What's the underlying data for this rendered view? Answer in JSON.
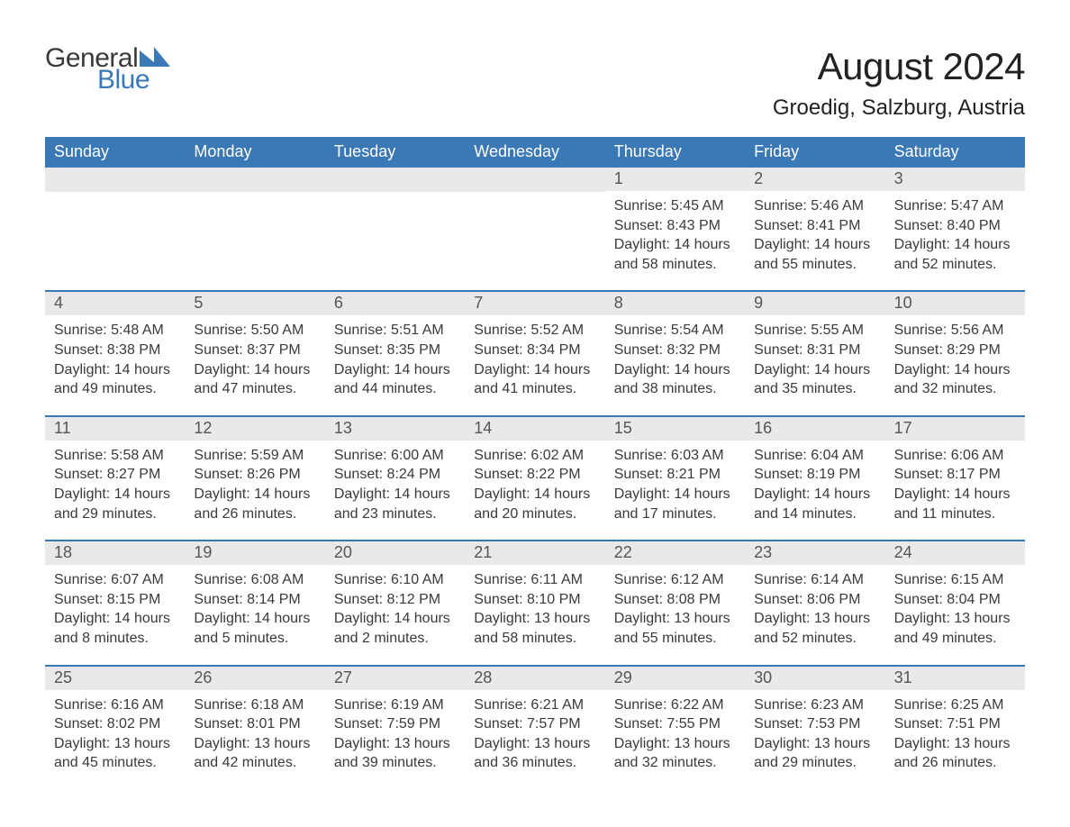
{
  "brand": {
    "name_part1": "General",
    "name_part2": "Blue",
    "color_text": "#3a3a3a",
    "color_accent": "#3a78b6"
  },
  "header": {
    "month_title": "August 2024",
    "location": "Groedig, Salzburg, Austria"
  },
  "style": {
    "page_bg": "#ffffff",
    "header_row_bg": "#3a78b6",
    "header_row_text": "#ffffff",
    "day_strip_bg": "#e9e9e9",
    "day_strip_text": "#555555",
    "body_text": "#3a3a3a",
    "week_divider": "#3a78b6",
    "month_title_fontsize": 42,
    "location_fontsize": 24,
    "weekday_fontsize": 18,
    "daynum_fontsize": 18,
    "body_fontsize": 16,
    "columns": 7
  },
  "weekdays": [
    "Sunday",
    "Monday",
    "Tuesday",
    "Wednesday",
    "Thursday",
    "Friday",
    "Saturday"
  ],
  "labels": {
    "sunrise": "Sunrise:",
    "sunset": "Sunset:",
    "daylight": "Daylight:"
  },
  "weeks": [
    [
      null,
      null,
      null,
      null,
      {
        "day": "1",
        "sunrise": "5:45 AM",
        "sunset": "8:43 PM",
        "daylight": "14 hours and 58 minutes."
      },
      {
        "day": "2",
        "sunrise": "5:46 AM",
        "sunset": "8:41 PM",
        "daylight": "14 hours and 55 minutes."
      },
      {
        "day": "3",
        "sunrise": "5:47 AM",
        "sunset": "8:40 PM",
        "daylight": "14 hours and 52 minutes."
      }
    ],
    [
      {
        "day": "4",
        "sunrise": "5:48 AM",
        "sunset": "8:38 PM",
        "daylight": "14 hours and 49 minutes."
      },
      {
        "day": "5",
        "sunrise": "5:50 AM",
        "sunset": "8:37 PM",
        "daylight": "14 hours and 47 minutes."
      },
      {
        "day": "6",
        "sunrise": "5:51 AM",
        "sunset": "8:35 PM",
        "daylight": "14 hours and 44 minutes."
      },
      {
        "day": "7",
        "sunrise": "5:52 AM",
        "sunset": "8:34 PM",
        "daylight": "14 hours and 41 minutes."
      },
      {
        "day": "8",
        "sunrise": "5:54 AM",
        "sunset": "8:32 PM",
        "daylight": "14 hours and 38 minutes."
      },
      {
        "day": "9",
        "sunrise": "5:55 AM",
        "sunset": "8:31 PM",
        "daylight": "14 hours and 35 minutes."
      },
      {
        "day": "10",
        "sunrise": "5:56 AM",
        "sunset": "8:29 PM",
        "daylight": "14 hours and 32 minutes."
      }
    ],
    [
      {
        "day": "11",
        "sunrise": "5:58 AM",
        "sunset": "8:27 PM",
        "daylight": "14 hours and 29 minutes."
      },
      {
        "day": "12",
        "sunrise": "5:59 AM",
        "sunset": "8:26 PM",
        "daylight": "14 hours and 26 minutes."
      },
      {
        "day": "13",
        "sunrise": "6:00 AM",
        "sunset": "8:24 PM",
        "daylight": "14 hours and 23 minutes."
      },
      {
        "day": "14",
        "sunrise": "6:02 AM",
        "sunset": "8:22 PM",
        "daylight": "14 hours and 20 minutes."
      },
      {
        "day": "15",
        "sunrise": "6:03 AM",
        "sunset": "8:21 PM",
        "daylight": "14 hours and 17 minutes."
      },
      {
        "day": "16",
        "sunrise": "6:04 AM",
        "sunset": "8:19 PM",
        "daylight": "14 hours and 14 minutes."
      },
      {
        "day": "17",
        "sunrise": "6:06 AM",
        "sunset": "8:17 PM",
        "daylight": "14 hours and 11 minutes."
      }
    ],
    [
      {
        "day": "18",
        "sunrise": "6:07 AM",
        "sunset": "8:15 PM",
        "daylight": "14 hours and 8 minutes."
      },
      {
        "day": "19",
        "sunrise": "6:08 AM",
        "sunset": "8:14 PM",
        "daylight": "14 hours and 5 minutes."
      },
      {
        "day": "20",
        "sunrise": "6:10 AM",
        "sunset": "8:12 PM",
        "daylight": "14 hours and 2 minutes."
      },
      {
        "day": "21",
        "sunrise": "6:11 AM",
        "sunset": "8:10 PM",
        "daylight": "13 hours and 58 minutes."
      },
      {
        "day": "22",
        "sunrise": "6:12 AM",
        "sunset": "8:08 PM",
        "daylight": "13 hours and 55 minutes."
      },
      {
        "day": "23",
        "sunrise": "6:14 AM",
        "sunset": "8:06 PM",
        "daylight": "13 hours and 52 minutes."
      },
      {
        "day": "24",
        "sunrise": "6:15 AM",
        "sunset": "8:04 PM",
        "daylight": "13 hours and 49 minutes."
      }
    ],
    [
      {
        "day": "25",
        "sunrise": "6:16 AM",
        "sunset": "8:02 PM",
        "daylight": "13 hours and 45 minutes."
      },
      {
        "day": "26",
        "sunrise": "6:18 AM",
        "sunset": "8:01 PM",
        "daylight": "13 hours and 42 minutes."
      },
      {
        "day": "27",
        "sunrise": "6:19 AM",
        "sunset": "7:59 PM",
        "daylight": "13 hours and 39 minutes."
      },
      {
        "day": "28",
        "sunrise": "6:21 AM",
        "sunset": "7:57 PM",
        "daylight": "13 hours and 36 minutes."
      },
      {
        "day": "29",
        "sunrise": "6:22 AM",
        "sunset": "7:55 PM",
        "daylight": "13 hours and 32 minutes."
      },
      {
        "day": "30",
        "sunrise": "6:23 AM",
        "sunset": "7:53 PM",
        "daylight": "13 hours and 29 minutes."
      },
      {
        "day": "31",
        "sunrise": "6:25 AM",
        "sunset": "7:51 PM",
        "daylight": "13 hours and 26 minutes."
      }
    ]
  ]
}
